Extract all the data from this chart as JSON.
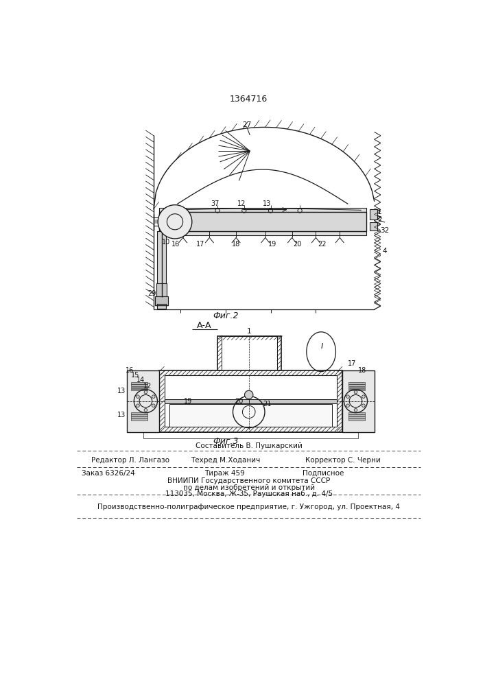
{
  "patent_number": "1364716",
  "fig2_label": "Фиг.2",
  "fig3_label": "Фиг.3",
  "section_label": "А-А",
  "bg_color": "#ffffff",
  "line_color": "#1a1a1a",
  "text_color": "#111111",
  "header_line1": "Составитель В. Пушкарский",
  "header_line2_col1": "Редактор Л. Лангазо",
  "header_line2_col2": "Техред М.Ходанич",
  "header_line2_col3": "Корректор С. Черни",
  "info_line1_col1": "Заказ 6326/24",
  "info_line1_col2": "Тираж 459",
  "info_line1_col3": "Подписное",
  "info_line2": "ВНИИПИ Государственного комитета СССР",
  "info_line3": "по делам изобретений и открытий",
  "info_line4": "113035, Москва, Ж-35, Раушская наб., д. 4/5",
  "footer": "Производственно-полиграфическое предприятие, г. Ужгород, ул. Проектная, 4"
}
